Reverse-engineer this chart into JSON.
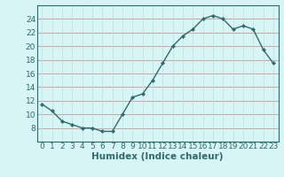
{
  "x": [
    0,
    1,
    2,
    3,
    4,
    5,
    6,
    7,
    8,
    9,
    10,
    11,
    12,
    13,
    14,
    15,
    16,
    17,
    18,
    19,
    20,
    21,
    22,
    23
  ],
  "y": [
    11.5,
    10.5,
    9.0,
    8.5,
    8.0,
    8.0,
    7.5,
    7.5,
    10.0,
    12.5,
    13.0,
    15.0,
    17.5,
    20.0,
    21.5,
    22.5,
    24.0,
    24.5,
    24.0,
    22.5,
    23.0,
    22.5,
    19.5,
    17.5
  ],
  "line_color": "#2e6b6b",
  "marker": "D",
  "marker_size": 2.2,
  "line_width": 1.0,
  "bg_color": "#d8f5f5",
  "grid_color_major": "#e8a0a0",
  "grid_color_minor": "#c8e8e8",
  "xlabel": "Humidex (Indice chaleur)",
  "xlim": [
    -0.5,
    23.5
  ],
  "ylim": [
    6,
    26
  ],
  "yticks": [
    8,
    10,
    12,
    14,
    16,
    18,
    20,
    22,
    24
  ],
  "xtick_labels": [
    "0",
    "1",
    "2",
    "3",
    "4",
    "5",
    "6",
    "7",
    "8",
    "9",
    "10",
    "11",
    "12",
    "13",
    "14",
    "15",
    "16",
    "17",
    "18",
    "19",
    "20",
    "21",
    "22",
    "23"
  ],
  "xlabel_fontsize": 7.5,
  "tick_fontsize": 6.5,
  "tick_color": "#2e6b6b",
  "spine_color": "#2e6b6b"
}
